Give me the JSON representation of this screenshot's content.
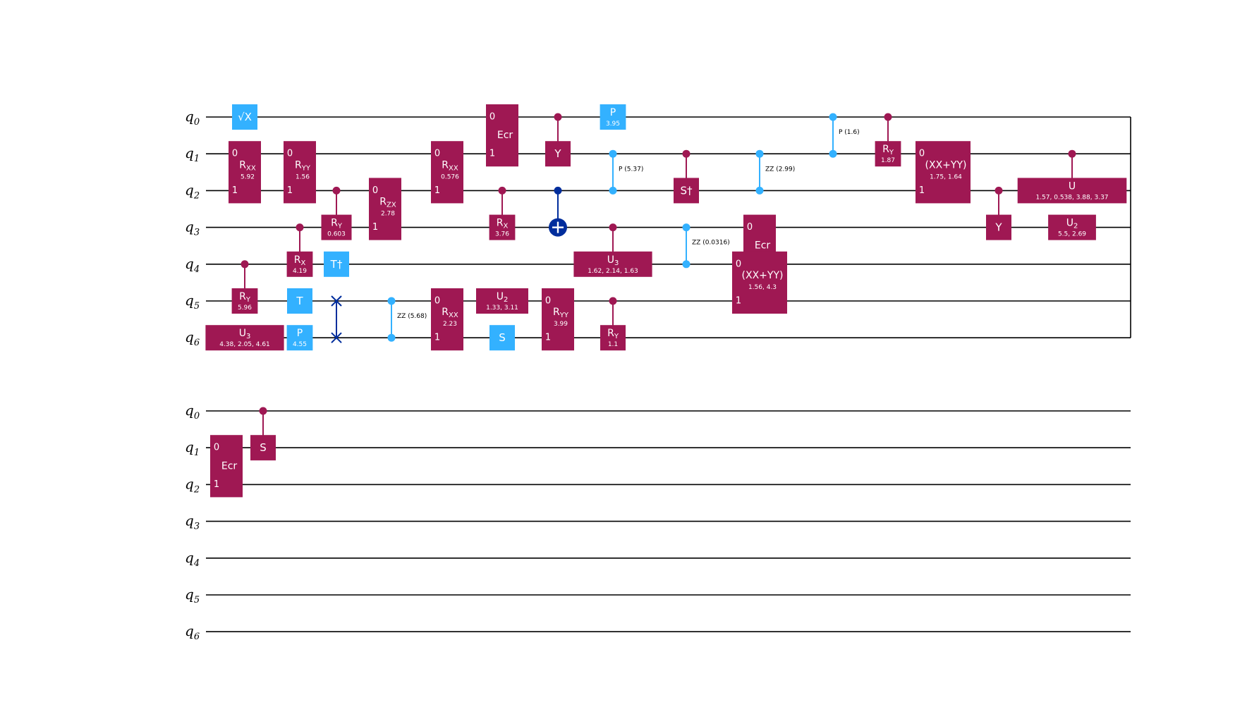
{
  "colors": {
    "two_qubit_gate": "#9f1853",
    "single_clifford_gate": "#33b1ff",
    "swap_cx": "#002d9c",
    "wire": "#000000",
    "gate_text": "#ffffff"
  },
  "qubit_labels": {
    "q0": {
      "base": "q",
      "sub": "0"
    },
    "q1": {
      "base": "q",
      "sub": "1"
    },
    "q2": {
      "base": "q",
      "sub": "2"
    },
    "q3": {
      "base": "q",
      "sub": "3"
    },
    "q4": {
      "base": "q",
      "sub": "4"
    },
    "q5": {
      "base": "q",
      "sub": "5"
    },
    "q6": {
      "base": "q",
      "sub": "6"
    }
  },
  "diagram": {
    "rows": [
      {
        "gates": [
          {
            "kind": "box",
            "color": "light",
            "name": "√X",
            "q": [
              0
            ]
          },
          {
            "kind": "multi",
            "name": "R",
            "sub": "XX",
            "param": "5.92",
            "q": [
              1,
              2
            ]
          },
          {
            "kind": "box",
            "name": "R",
            "sub": "Y",
            "param": "5.96",
            "q": [
              5
            ],
            "ctrl": [
              4
            ]
          },
          {
            "kind": "box",
            "name": "U",
            "sub": "3",
            "param": "4.38, 2.05, 4.61",
            "q": [
              6
            ]
          },
          {
            "kind": "multi",
            "name": "R",
            "sub": "YY",
            "param": "1.56",
            "q": [
              1,
              2
            ]
          },
          {
            "kind": "box",
            "name": "R",
            "sub": "X",
            "param": "4.19",
            "q": [
              4
            ],
            "ctrl": [
              3
            ]
          },
          {
            "kind": "box",
            "color": "light",
            "name": "T",
            "q": [
              5
            ]
          },
          {
            "kind": "box",
            "color": "light",
            "name": "P",
            "param": "4.55",
            "q": [
              6
            ]
          },
          {
            "kind": "box",
            "name": "R",
            "sub": "Y",
            "param": "0.603",
            "q": [
              3
            ],
            "ctrl": [
              2
            ]
          },
          {
            "kind": "box",
            "color": "light",
            "name": "T†",
            "q": [
              4
            ]
          },
          {
            "kind": "swap",
            "q": [
              5,
              6
            ]
          },
          {
            "kind": "multi",
            "name": "R",
            "sub": "ZX",
            "param": "2.78",
            "q": [
              2,
              3
            ]
          },
          {
            "kind": "zz",
            "label": "ZZ (5.68)",
            "q": [
              5,
              6
            ]
          },
          {
            "kind": "multi",
            "name": "R",
            "sub": "XX",
            "param": "0.576",
            "q": [
              1,
              2
            ]
          },
          {
            "kind": "multi",
            "name": "R",
            "sub": "XX",
            "param": "2.23",
            "q": [
              5,
              6
            ]
          },
          {
            "kind": "multi",
            "name": "Ecr",
            "q": [
              0,
              1
            ]
          },
          {
            "kind": "box",
            "name": "R",
            "sub": "X",
            "param": "3.76",
            "q": [
              3
            ],
            "ctrl": [
              2
            ]
          },
          {
            "kind": "box",
            "name": "U",
            "sub": "2",
            "param": "1.33, 3.11",
            "q": [
              5
            ]
          },
          {
            "kind": "box",
            "color": "light",
            "name": "S",
            "q": [
              6
            ]
          },
          {
            "kind": "box",
            "name": "Y",
            "q": [
              1
            ],
            "ctrl": [
              0
            ]
          },
          {
            "kind": "cx",
            "ctrl": [
              2
            ],
            "q": [
              3
            ]
          },
          {
            "kind": "multi",
            "name": "R",
            "sub": "YY",
            "param": "3.99",
            "q": [
              5,
              6
            ]
          },
          {
            "kind": "box",
            "color": "light",
            "name": "P",
            "param": "3.95",
            "q": [
              0
            ]
          },
          {
            "kind": "cp",
            "label": "P (5.37)",
            "q": [
              1,
              2
            ]
          },
          {
            "kind": "box",
            "name": "U",
            "sub": "3",
            "param": "1.62, 2.14, 1.63",
            "q": [
              4
            ],
            "ctrl": [
              3
            ]
          },
          {
            "kind": "box",
            "name": "R",
            "sub": "Y",
            "param": "1.1",
            "q": [
              6
            ],
            "ctrl": [
              5
            ]
          },
          {
            "kind": "box",
            "name": "S†",
            "q": [
              2
            ],
            "ctrl": [
              1
            ]
          },
          {
            "kind": "zz",
            "label": "ZZ (0.0316)",
            "q": [
              3,
              4
            ]
          },
          {
            "kind": "zz",
            "label": "ZZ (2.99)",
            "q": [
              1,
              2
            ]
          },
          {
            "kind": "multi",
            "name": "Ecr",
            "q": [
              3,
              4
            ]
          },
          {
            "kind": "multi",
            "name": "(XX+YY)",
            "param": "1.56, 4.3",
            "q": [
              4,
              5
            ]
          },
          {
            "kind": "cp",
            "label": "P (1.6)",
            "q": [
              0,
              1
            ]
          },
          {
            "kind": "box",
            "name": "R",
            "sub": "Y",
            "param": "1.87",
            "q": [
              1
            ],
            "ctrl": [
              0
            ]
          },
          {
            "kind": "multi",
            "name": "(XX+YY)",
            "param": "1.75, 1.64",
            "q": [
              1,
              2
            ]
          },
          {
            "kind": "box",
            "name": "Y",
            "q": [
              3
            ],
            "ctrl": [
              2
            ]
          },
          {
            "kind": "box",
            "name": "U",
            "param": "1.57, 0.538, 3.88, 3.37",
            "q": [
              2
            ],
            "ctrl": [
              1
            ]
          },
          {
            "kind": "box",
            "name": "U",
            "sub": "2",
            "param": "5.5, 2.69",
            "q": [
              3
            ]
          }
        ]
      },
      {
        "gates": [
          {
            "kind": "multi",
            "name": "Ecr",
            "q": [
              1,
              2
            ]
          },
          {
            "kind": "box",
            "name": "S",
            "q": [
              1
            ],
            "ctrl": [
              0
            ]
          }
        ]
      }
    ]
  }
}
